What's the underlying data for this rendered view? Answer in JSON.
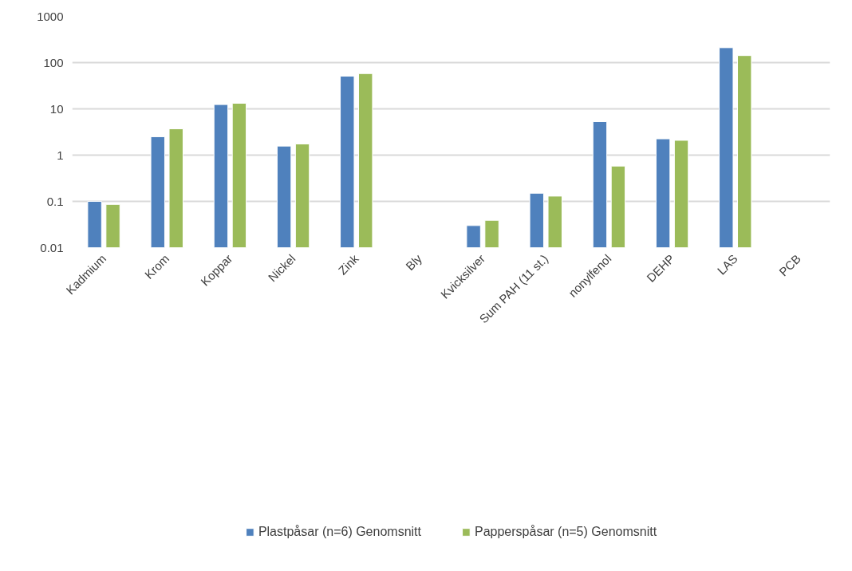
{
  "chart_data": {
    "type": "bar",
    "log": "y",
    "categories": [
      "Kadmium",
      "Krom",
      "Koppar",
      "Nickel",
      "Zink",
      "Bly",
      "Kvicksilver",
      "Sum PAH (11 st.)",
      "nonylfenol",
      "DEHP",
      "LAS",
      "PCB"
    ],
    "series": [
      {
        "name": "Plastpåsar (n=6) Genomsnitt",
        "color": "#4f81bd",
        "values": [
          0.1,
          2.5,
          12.4,
          1.57,
          51,
          null,
          0.03,
          0.15,
          5.3,
          2.25,
          210,
          null
        ]
      },
      {
        "name": "Papperspåsar (n=5) Genomsnitt",
        "color": "#9bbb59",
        "values": [
          0.086,
          3.7,
          13.2,
          1.74,
          58,
          null,
          0.039,
          0.13,
          0.58,
          2.09,
          142,
          null
        ]
      }
    ],
    "ylim": [
      0.01,
      1000
    ],
    "yticks": [
      {
        "value": 0.01,
        "label": "0.01"
      },
      {
        "value": 0.1,
        "label": "0.1"
      },
      1,
      10,
      100,
      1000
    ],
    "grid": "y",
    "legend": "bottom"
  }
}
